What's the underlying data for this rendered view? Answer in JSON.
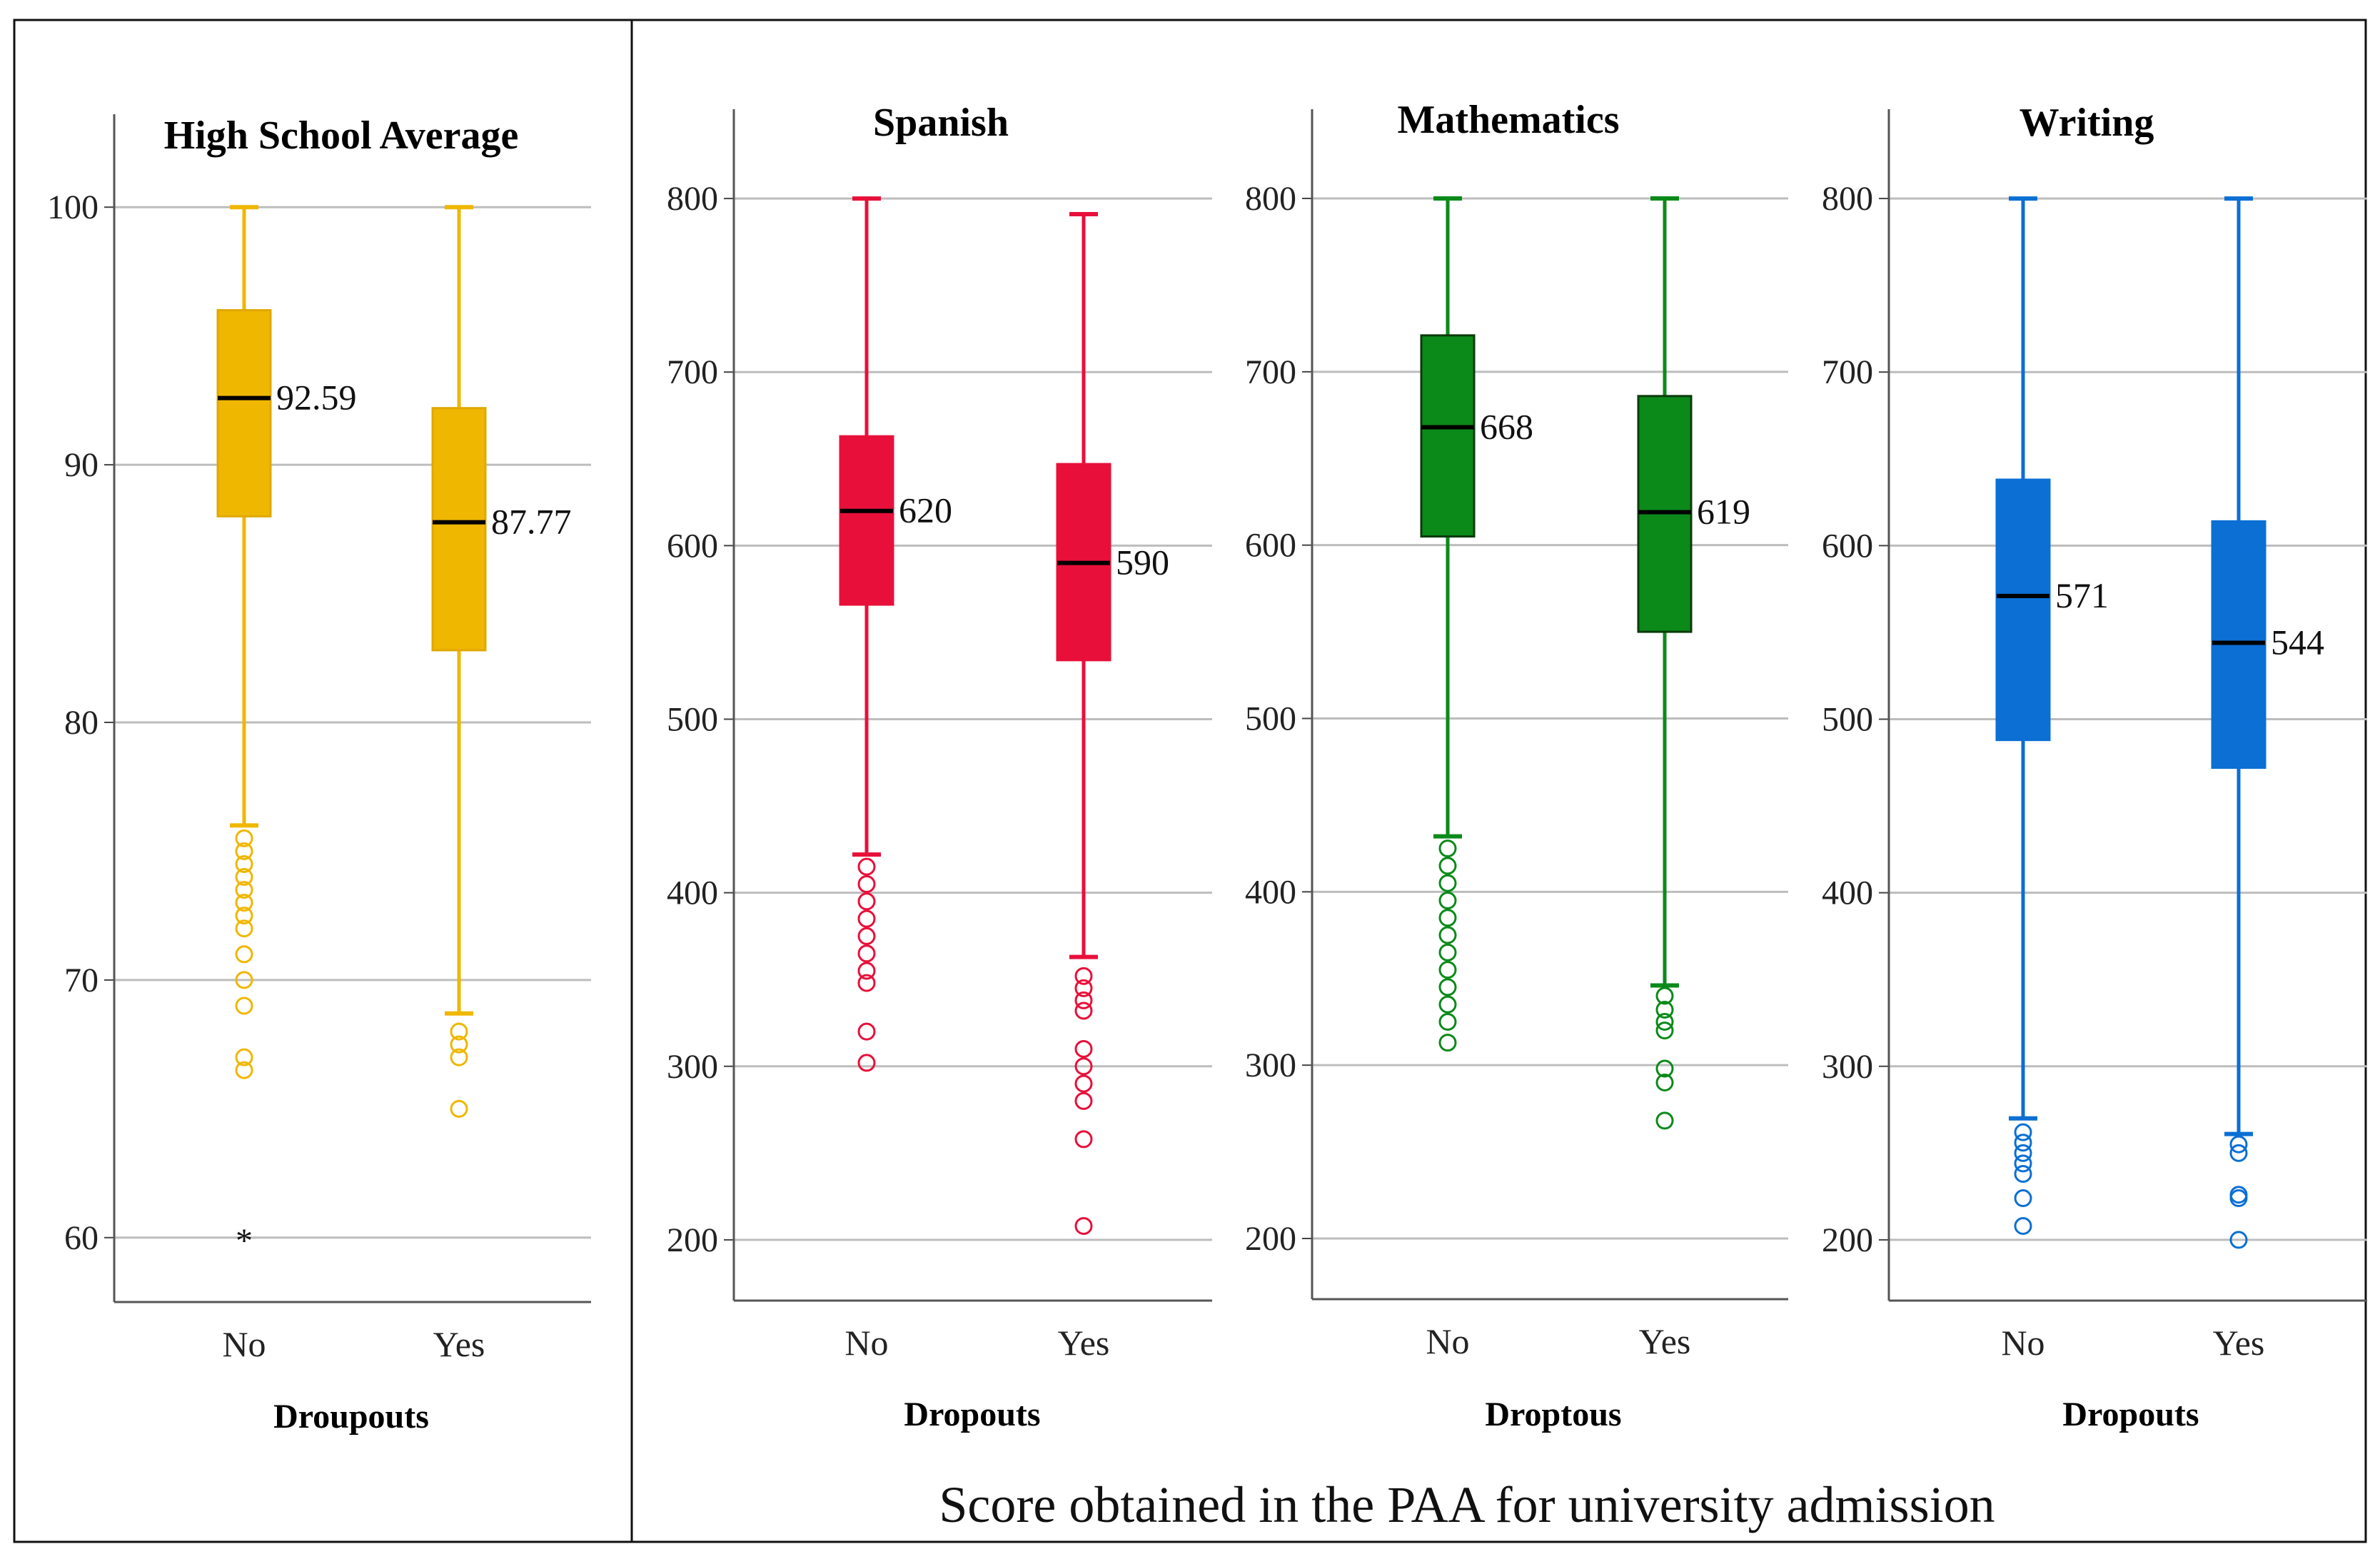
{
  "caption": "Score obtained in the PAA for university admission",
  "chart_data": [
    {
      "type": "box",
      "title": "High School Average",
      "xlabel": "Droupouts",
      "ylabel": "",
      "ylim": [
        57.5,
        102.5
      ],
      "yticks": [
        60,
        70,
        80,
        90,
        100
      ],
      "grid": true,
      "color": "#EFB700",
      "categories": [
        "No",
        "Yes"
      ],
      "boxes": [
        {
          "category": "No",
          "min": 76,
          "q1": 88,
          "median": 92.59,
          "q3": 96,
          "max": 100,
          "median_label": "92.59",
          "outliers": [
            75.5,
            75,
            74.5,
            74,
            73.5,
            73,
            72.5,
            72,
            71,
            70,
            69,
            67,
            66.5
          ],
          "extremes": [
            60
          ]
        },
        {
          "category": "Yes",
          "min": 68.7,
          "q1": 82.8,
          "median": 87.77,
          "q3": 92.2,
          "max": 100,
          "median_label": "87.77",
          "outliers": [
            68,
            67.5,
            67,
            65
          ],
          "extremes": []
        }
      ]
    },
    {
      "type": "box",
      "title": "Spanish",
      "xlabel": "Dropouts",
      "ylabel": "",
      "ylim": [
        165,
        835
      ],
      "yticks": [
        200,
        300,
        400,
        500,
        600,
        700,
        800
      ],
      "grid": true,
      "color": "#E8103A",
      "categories": [
        "No",
        "Yes"
      ],
      "boxes": [
        {
          "category": "No",
          "min": 422,
          "q1": 566,
          "median": 620,
          "q3": 663,
          "max": 800,
          "median_label": "620",
          "outliers": [
            415,
            405,
            395,
            385,
            375,
            365,
            355,
            348,
            320,
            302
          ],
          "extremes": []
        },
        {
          "category": "Yes",
          "min": 363,
          "q1": 534,
          "median": 590,
          "q3": 647,
          "max": 791,
          "median_label": "590",
          "outliers": [
            352,
            345,
            338,
            332,
            310,
            300,
            290,
            280,
            258,
            208
          ],
          "extremes": []
        }
      ]
    },
    {
      "type": "box",
      "title": "Mathematics",
      "xlabel": "Droptous",
      "ylabel": "",
      "ylim": [
        165,
        835
      ],
      "yticks": [
        200,
        300,
        400,
        500,
        600,
        700,
        800
      ],
      "grid": true,
      "color": "#0B8A1A",
      "categories": [
        "No",
        "Yes"
      ],
      "boxes": [
        {
          "category": "No",
          "min": 432,
          "q1": 605,
          "median": 668,
          "q3": 721,
          "max": 800,
          "median_label": "668",
          "outliers": [
            425,
            415,
            405,
            395,
            385,
            375,
            365,
            355,
            345,
            335,
            325,
            313
          ],
          "extremes": []
        },
        {
          "category": "Yes",
          "min": 346,
          "q1": 550,
          "median": 619,
          "q3": 686,
          "max": 800,
          "median_label": "619",
          "outliers": [
            340,
            332,
            325,
            320,
            298,
            290,
            268
          ],
          "extremes": []
        }
      ]
    },
    {
      "type": "box",
      "title": "Writing",
      "xlabel": "Dropouts",
      "ylabel": "",
      "ylim": [
        165,
        835
      ],
      "yticks": [
        200,
        300,
        400,
        500,
        600,
        700,
        800
      ],
      "grid": true,
      "color": "#0B6FD4",
      "categories": [
        "No",
        "Yes"
      ],
      "boxes": [
        {
          "category": "No",
          "min": 270,
          "q1": 488,
          "median": 571,
          "q3": 638,
          "max": 800,
          "median_label": "571",
          "outliers": [
            262,
            256,
            250,
            244,
            238,
            224,
            208
          ],
          "extremes": []
        },
        {
          "category": "Yes",
          "min": 261,
          "q1": 472,
          "median": 544,
          "q3": 614,
          "max": 800,
          "median_label": "544",
          "outliers": [
            255,
            250,
            226,
            224,
            200
          ],
          "extremes": []
        }
      ]
    }
  ]
}
